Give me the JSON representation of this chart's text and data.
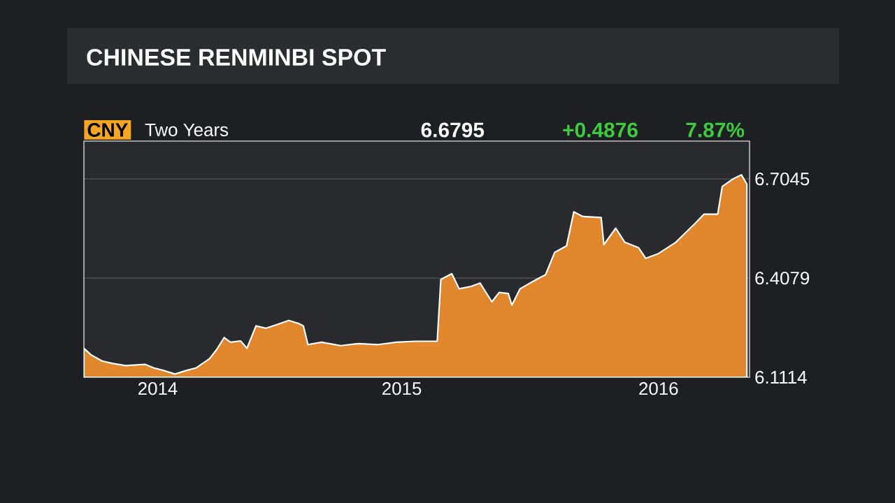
{
  "chart_data": {
    "type": "area",
    "title": "CHINESE RENMINBI SPOT",
    "annotations": [
      "CNY",
      "Two Years",
      "6.6795",
      "+0.4876",
      "7.87%"
    ],
    "x": [
      "2014-07-01",
      "2014-07-09",
      "2014-07-21",
      "2014-08-01",
      "2014-08-16",
      "2014-09-06",
      "2014-09-16",
      "2014-09-26",
      "2014-10-09",
      "2014-10-22",
      "2014-11-01",
      "2014-11-16",
      "2014-11-24",
      "2014-12-02",
      "2014-12-09",
      "2014-12-20",
      "2014-12-27",
      "2015-01-06",
      "2015-01-17",
      "2015-01-27",
      "2015-02-11",
      "2015-02-22",
      "2015-02-27",
      "2015-03-04",
      "2015-03-19",
      "2015-04-09",
      "2015-04-29",
      "2015-05-20",
      "2015-06-09",
      "2015-06-30",
      "2015-07-24",
      "2015-07-28",
      "2015-08-09",
      "2015-08-17",
      "2015-08-30",
      "2015-09-09",
      "2015-09-22",
      "2015-09-30",
      "2015-10-10",
      "2015-10-14",
      "2015-10-23",
      "2015-11-10",
      "2015-11-20",
      "2015-11-30",
      "2015-12-13",
      "2015-12-21",
      "2015-12-31",
      "2016-01-20",
      "2016-01-23",
      "2016-02-05",
      "2016-02-15",
      "2016-03-01",
      "2016-03-09",
      "2016-03-22",
      "2016-04-11",
      "2016-05-02",
      "2016-05-12",
      "2016-05-27",
      "2016-06-01",
      "2016-06-12",
      "2016-06-22",
      "2016-06-28"
    ],
    "series": [
      {
        "color": "#e0862c",
        "values": [
          6.198,
          6.178,
          6.16,
          6.153,
          6.146,
          6.15,
          6.139,
          6.132,
          6.121,
          6.132,
          6.139,
          6.167,
          6.195,
          6.23,
          6.216,
          6.22,
          6.198,
          6.265,
          6.258,
          6.267,
          6.281,
          6.272,
          6.265,
          6.209,
          6.216,
          6.206,
          6.212,
          6.209,
          6.216,
          6.219,
          6.219,
          6.404,
          6.421,
          6.376,
          6.383,
          6.393,
          6.337,
          6.365,
          6.362,
          6.327,
          6.376,
          6.404,
          6.418,
          6.485,
          6.504,
          6.606,
          6.592,
          6.589,
          6.508,
          6.557,
          6.515,
          6.499,
          6.467,
          6.48,
          6.515,
          6.571,
          6.599,
          6.599,
          6.682,
          6.703,
          6.717,
          6.689
        ]
      }
    ],
    "xlim": [
      "2014-07-01",
      "2016-07-01"
    ],
    "xticks": [
      {
        "value": "2014-09-20",
        "label": "2014"
      },
      {
        "value": "2015-06-15",
        "label": "2015"
      },
      {
        "value": "2016-03-23",
        "label": "2016"
      }
    ],
    "ylim": [
      6.1114,
      6.8175
    ],
    "yticks": [
      6.1114,
      6.4079,
      6.7045
    ],
    "grid": "y"
  }
}
